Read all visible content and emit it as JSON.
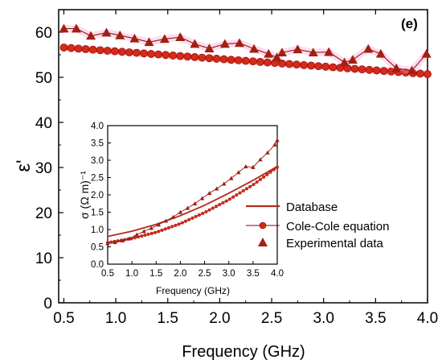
{
  "panel_label": "(e)",
  "colors": {
    "experimental": "#a31f12",
    "experimental_line": "#8b1a10",
    "colecole": "#d42a18",
    "colecole_line": "#8b0000",
    "database": "#b22a1a",
    "glow": "#ff9ad2"
  },
  "chart_data": [
    {
      "id": "main",
      "type": "scatter",
      "title": "",
      "xlabel": "Frequency (GHz)",
      "ylabel": "ε'",
      "xlim": [
        0.45,
        4.0
      ],
      "ylim": [
        0,
        65
      ],
      "xticks": [
        0.5,
        1.0,
        1.5,
        2.0,
        2.5,
        3.0,
        3.5,
        4.0
      ],
      "xtick_labels": [
        "0.5",
        "1.0",
        "1.5",
        "2.0",
        "2.5",
        "3.0",
        "3.5",
        "4.0"
      ],
      "yticks": [
        0,
        10,
        20,
        30,
        40,
        50,
        60
      ],
      "ytick_labels": [
        "0",
        "10",
        "20",
        "30",
        "40",
        "50",
        "60"
      ],
      "series": [
        {
          "name": "Experimental data",
          "marker": "triangle",
          "x": [
            0.5,
            0.62,
            0.76,
            0.91,
            1.04,
            1.18,
            1.32,
            1.47,
            1.62,
            1.76,
            1.9,
            2.05,
            2.19,
            2.33,
            2.47,
            2.55,
            2.6,
            2.75,
            2.9,
            3.05,
            3.2,
            3.28,
            3.43,
            3.55,
            3.7,
            3.85,
            3.99
          ],
          "y": [
            60.8,
            60.8,
            59.2,
            59.9,
            59.3,
            58.6,
            57.8,
            58.5,
            58.9,
            57.4,
            56.4,
            57.4,
            57.6,
            56.3,
            55.2,
            54.4,
            55.5,
            56.2,
            55.5,
            55.6,
            53.3,
            53.9,
            56.3,
            55.2,
            52.0,
            51.5,
            55.2
          ]
        },
        {
          "name": "Cole-Cole equation",
          "marker": "circle",
          "x_start": 0.5,
          "x_end": 4.0,
          "count": 51,
          "y_start": 56.6,
          "y_end": 50.7
        }
      ]
    },
    {
      "id": "inset",
      "type": "line",
      "title": "",
      "xlabel": "Frequency (GHz)",
      "ylabel": "σ (Ω m)⁻¹",
      "xlim": [
        0.5,
        4.0
      ],
      "ylim": [
        0,
        4.0
      ],
      "xticks": [
        0.5,
        1.0,
        1.5,
        2.0,
        2.5,
        3.0,
        3.5,
        4.0
      ],
      "xtick_labels": [
        "0.5",
        "1.0",
        "1.5",
        "2.0",
        "2.5",
        "3.0",
        "3.5",
        "4.0"
      ],
      "yticks": [
        0,
        0.5,
        1.0,
        1.5,
        2.0,
        2.5,
        3.0,
        3.5,
        4.0
      ],
      "ytick_labels": [
        "0.0",
        "0.5",
        "1.0",
        "1.5",
        "2.0",
        "2.5",
        "3.0",
        "3.5",
        "4.0"
      ],
      "legend": "right",
      "series": [
        {
          "name": "Database",
          "marker": "none",
          "x": [
            0.5,
            1.0,
            1.5,
            2.0,
            2.5,
            3.0,
            3.5,
            4.0
          ],
          "y": [
            0.8,
            0.95,
            1.15,
            1.4,
            1.7,
            2.05,
            2.42,
            2.82
          ]
        },
        {
          "name": "Cole-Cole equation",
          "marker": "circle",
          "x": [
            0.5,
            1.0,
            1.5,
            2.0,
            2.5,
            3.0,
            3.5,
            4.0
          ],
          "y": [
            0.62,
            0.74,
            0.92,
            1.17,
            1.49,
            1.86,
            2.29,
            2.8
          ]
        },
        {
          "name": "Experimental data",
          "marker": "triangle",
          "x": [
            0.5,
            0.65,
            0.8,
            0.95,
            1.1,
            1.25,
            1.4,
            1.55,
            1.7,
            1.85,
            2.0,
            2.15,
            2.3,
            2.45,
            2.6,
            2.75,
            2.9,
            3.05,
            3.2,
            3.35,
            3.5,
            3.65,
            3.8,
            3.95,
            4.0
          ],
          "y": [
            0.6,
            0.63,
            0.68,
            0.74,
            0.85,
            0.95,
            1.04,
            1.14,
            1.25,
            1.36,
            1.5,
            1.62,
            1.75,
            1.9,
            2.05,
            2.18,
            2.32,
            2.48,
            2.65,
            2.82,
            2.8,
            3.02,
            3.22,
            3.45,
            3.58
          ]
        }
      ]
    }
  ]
}
